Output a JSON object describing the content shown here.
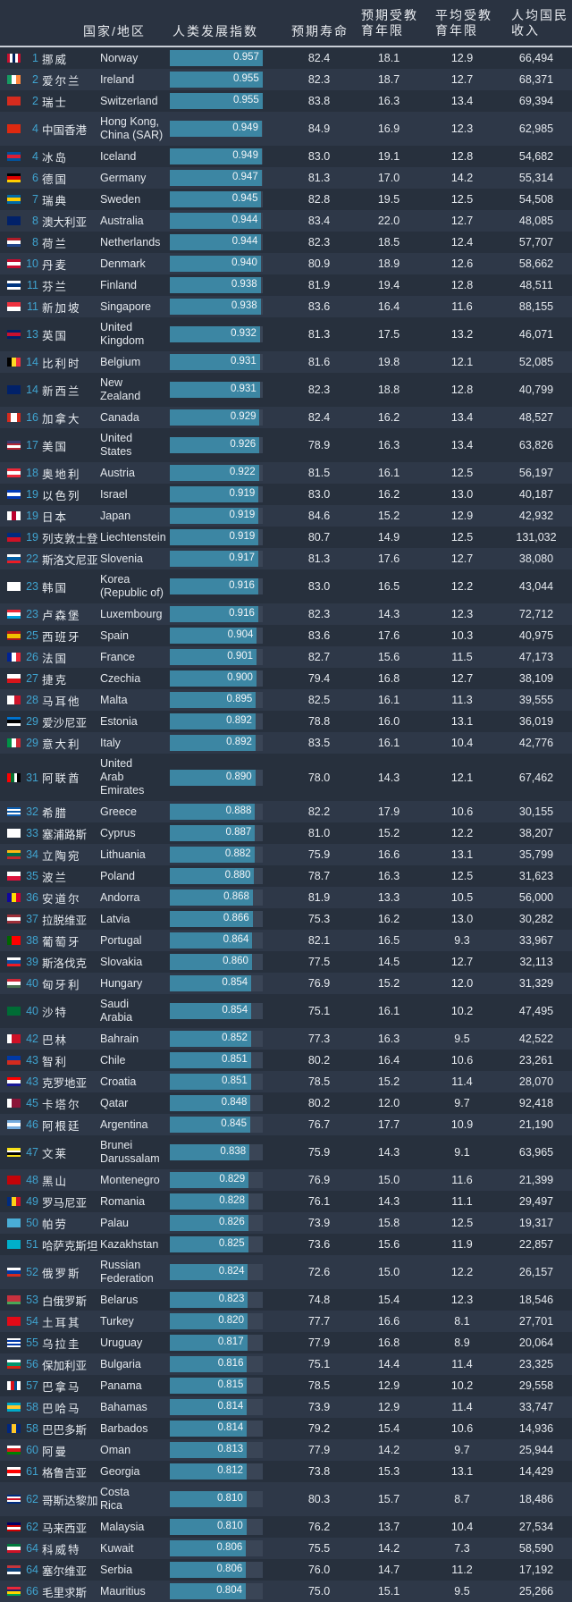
{
  "headers": {
    "country": "国家/地区",
    "hdi": "人类发展指数",
    "life": "预期寿命",
    "expected_edu": "预期受教育年限",
    "mean_edu": "平均受教育年限",
    "gni": "人均国民收入"
  },
  "colors": {
    "rank": "#3fa3cf",
    "bar": "#3c86a3",
    "bar_bg": "#3a4556"
  },
  "rows": [
    {
      "rank": "1",
      "cn": "挪威",
      "en": "Norway",
      "hdi": "0.957",
      "life": "82.4",
      "exp": "18.1",
      "mean": "12.9",
      "gni": "66,494",
      "flag": [
        "#c8102e",
        "#ffffff",
        "#00205b",
        "#ffffff",
        "#c8102e"
      ],
      "dir": "v"
    },
    {
      "rank": "2",
      "cn": "爱尔兰",
      "en": "Ireland",
      "hdi": "0.955",
      "life": "82.3",
      "exp": "18.7",
      "mean": "12.7",
      "gni": "68,371",
      "flag": [
        "#169b62",
        "#ffffff",
        "#ff883e"
      ],
      "dir": "v"
    },
    {
      "rank": "2",
      "cn": "瑞士",
      "en": "Switzerland",
      "hdi": "0.955",
      "life": "83.8",
      "exp": "16.3",
      "mean": "13.4",
      "gni": "69,394",
      "flag": [
        "#d52b1e"
      ],
      "dir": "v"
    },
    {
      "rank": "4",
      "cn": "中国香港",
      "en": "Hong Kong,\nChina (SAR)",
      "hdi": "0.949",
      "life": "84.9",
      "exp": "16.9",
      "mean": "12.3",
      "gni": "62,985",
      "flag": [
        "#de2910"
      ],
      "dir": "v"
    },
    {
      "rank": "4",
      "cn": "冰岛",
      "en": "Iceland",
      "hdi": "0.949",
      "life": "83.0",
      "exp": "19.1",
      "mean": "12.8",
      "gni": "54,682",
      "flag": [
        "#02529c",
        "#dc1e35",
        "#02529c"
      ],
      "dir": "h"
    },
    {
      "rank": "6",
      "cn": "德国",
      "en": "Germany",
      "hdi": "0.947",
      "life": "81.3",
      "exp": "17.0",
      "mean": "14.2",
      "gni": "55,314",
      "flag": [
        "#000000",
        "#dd0000",
        "#ffce00"
      ],
      "dir": "h"
    },
    {
      "rank": "7",
      "cn": "瑞典",
      "en": "Sweden",
      "hdi": "0.945",
      "life": "82.8",
      "exp": "19.5",
      "mean": "12.5",
      "gni": "54,508",
      "flag": [
        "#006aa7",
        "#fecc00",
        "#006aa7"
      ],
      "dir": "h"
    },
    {
      "rank": "8",
      "cn": "澳大利亚",
      "en": "Australia",
      "hdi": "0.944",
      "life": "83.4",
      "exp": "22.0",
      "mean": "12.7",
      "gni": "48,085",
      "flag": [
        "#012169"
      ],
      "dir": "h"
    },
    {
      "rank": "8",
      "cn": "荷兰",
      "en": "Netherlands",
      "hdi": "0.944",
      "life": "82.3",
      "exp": "18.5",
      "mean": "12.4",
      "gni": "57,707",
      "flag": [
        "#ae1c28",
        "#ffffff",
        "#21468b"
      ],
      "dir": "h"
    },
    {
      "rank": "10",
      "cn": "丹麦",
      "en": "Denmark",
      "hdi": "0.940",
      "life": "80.9",
      "exp": "18.9",
      "mean": "12.6",
      "gni": "58,662",
      "flag": [
        "#c60c30",
        "#ffffff",
        "#c60c30"
      ],
      "dir": "h"
    },
    {
      "rank": "11",
      "cn": "芬兰",
      "en": "Finland",
      "hdi": "0.938",
      "life": "81.9",
      "exp": "19.4",
      "mean": "12.8",
      "gni": "48,511",
      "flag": [
        "#ffffff",
        "#003580",
        "#ffffff"
      ],
      "dir": "h"
    },
    {
      "rank": "11",
      "cn": "新加坡",
      "en": "Singapore",
      "hdi": "0.938",
      "life": "83.6",
      "exp": "16.4",
      "mean": "11.6",
      "gni": "88,155",
      "flag": [
        "#ef3340",
        "#ffffff"
      ],
      "dir": "h"
    },
    {
      "rank": "13",
      "cn": "英国",
      "en": "United\nKingdom",
      "hdi": "0.932",
      "life": "81.3",
      "exp": "17.5",
      "mean": "13.2",
      "gni": "46,071",
      "flag": [
        "#012169",
        "#c8102e",
        "#012169"
      ],
      "dir": "h"
    },
    {
      "rank": "14",
      "cn": "比利时",
      "en": "Belgium",
      "hdi": "0.931",
      "life": "81.6",
      "exp": "19.8",
      "mean": "12.1",
      "gni": "52,085",
      "flag": [
        "#000000",
        "#fdda24",
        "#ef3340"
      ],
      "dir": "v"
    },
    {
      "rank": "14",
      "cn": "新西兰",
      "en": "New\nZealand",
      "hdi": "0.931",
      "life": "82.3",
      "exp": "18.8",
      "mean": "12.8",
      "gni": "40,799",
      "flag": [
        "#012169"
      ],
      "dir": "h"
    },
    {
      "rank": "16",
      "cn": "加拿大",
      "en": "Canada",
      "hdi": "0.929",
      "life": "82.4",
      "exp": "16.2",
      "mean": "13.4",
      "gni": "48,527",
      "flag": [
        "#d52b1e",
        "#ffffff",
        "#ffffff",
        "#d52b1e"
      ],
      "dir": "v"
    },
    {
      "rank": "17",
      "cn": "美国",
      "en": "United\nStates",
      "hdi": "0.926",
      "life": "78.9",
      "exp": "16.3",
      "mean": "13.4",
      "gni": "63,826",
      "flag": [
        "#3c3b6e",
        "#b22234",
        "#ffffff",
        "#b22234"
      ],
      "dir": "h"
    },
    {
      "rank": "18",
      "cn": "奥地利",
      "en": "Austria",
      "hdi": "0.922",
      "life": "81.5",
      "exp": "16.1",
      "mean": "12.5",
      "gni": "56,197",
      "flag": [
        "#ed2939",
        "#ffffff",
        "#ed2939"
      ],
      "dir": "h"
    },
    {
      "rank": "19",
      "cn": "以色列",
      "en": "Israel",
      "hdi": "0.919",
      "life": "83.0",
      "exp": "16.2",
      "mean": "13.0",
      "gni": "40,187",
      "flag": [
        "#0038b8",
        "#ffffff",
        "#0038b8"
      ],
      "dir": "h"
    },
    {
      "rank": "19",
      "cn": "日本",
      "en": "Japan",
      "hdi": "0.919",
      "life": "84.6",
      "exp": "15.2",
      "mean": "12.9",
      "gni": "42,932",
      "flag": [
        "#ffffff",
        "#bc002d",
        "#ffffff"
      ],
      "dir": "v"
    },
    {
      "rank": "19",
      "cn": "列支敦士登",
      "en": "Liechtenstein",
      "hdi": "0.919",
      "life": "80.7",
      "exp": "14.9",
      "mean": "12.5",
      "gni": "131,032",
      "flag": [
        "#002b7f",
        "#ce1126"
      ],
      "dir": "h"
    },
    {
      "rank": "22",
      "cn": "斯洛文尼亚",
      "en": "Slovenia",
      "hdi": "0.917",
      "life": "81.3",
      "exp": "17.6",
      "mean": "12.7",
      "gni": "38,080",
      "flag": [
        "#ffffff",
        "#005da4",
        "#ed1c24"
      ],
      "dir": "h"
    },
    {
      "rank": "23",
      "cn": "韩国",
      "en": "Korea\n(Republic of)",
      "hdi": "0.916",
      "life": "83.0",
      "exp": "16.5",
      "mean": "12.2",
      "gni": "43,044",
      "flag": [
        "#ffffff"
      ],
      "dir": "h"
    },
    {
      "rank": "23",
      "cn": "卢森堡",
      "en": "Luxembourg",
      "hdi": "0.916",
      "life": "82.3",
      "exp": "14.3",
      "mean": "12.3",
      "gni": "72,712",
      "flag": [
        "#ed2939",
        "#ffffff",
        "#00a1de"
      ],
      "dir": "h"
    },
    {
      "rank": "25",
      "cn": "西班牙",
      "en": "Spain",
      "hdi": "0.904",
      "life": "83.6",
      "exp": "17.6",
      "mean": "10.3",
      "gni": "40,975",
      "flag": [
        "#aa151b",
        "#f1bf00",
        "#f1bf00",
        "#aa151b"
      ],
      "dir": "h"
    },
    {
      "rank": "26",
      "cn": "法国",
      "en": "France",
      "hdi": "0.901",
      "life": "82.7",
      "exp": "15.6",
      "mean": "11.5",
      "gni": "47,173",
      "flag": [
        "#002395",
        "#ffffff",
        "#ed2939"
      ],
      "dir": "v"
    },
    {
      "rank": "27",
      "cn": "捷克",
      "en": "Czechia",
      "hdi": "0.900",
      "life": "79.4",
      "exp": "16.8",
      "mean": "12.7",
      "gni": "38,109",
      "flag": [
        "#ffffff",
        "#d7141a"
      ],
      "dir": "h"
    },
    {
      "rank": "28",
      "cn": "马耳他",
      "en": "Malta",
      "hdi": "0.895",
      "life": "82.5",
      "exp": "16.1",
      "mean": "11.3",
      "gni": "39,555",
      "flag": [
        "#ffffff",
        "#cf142b"
      ],
      "dir": "v"
    },
    {
      "rank": "29",
      "cn": "爱沙尼亚",
      "en": "Estonia",
      "hdi": "0.892",
      "life": "78.8",
      "exp": "16.0",
      "mean": "13.1",
      "gni": "36,019",
      "flag": [
        "#0072ce",
        "#000000",
        "#ffffff"
      ],
      "dir": "h"
    },
    {
      "rank": "29",
      "cn": "意大利",
      "en": "Italy",
      "hdi": "0.892",
      "life": "83.5",
      "exp": "16.1",
      "mean": "10.4",
      "gni": "42,776",
      "flag": [
        "#009246",
        "#ffffff",
        "#ce2b37"
      ],
      "dir": "v"
    },
    {
      "rank": "31",
      "cn": "阿联酋",
      "en": "United\nArab\nEmirates",
      "hdi": "0.890",
      "life": "78.0",
      "exp": "14.3",
      "mean": "12.1",
      "gni": "67,462",
      "flag": [
        "#ff0000",
        "#00732f",
        "#ffffff",
        "#000000"
      ],
      "dir": "v"
    },
    {
      "rank": "32",
      "cn": "希腊",
      "en": "Greece",
      "hdi": "0.888",
      "life": "82.2",
      "exp": "17.9",
      "mean": "10.6",
      "gni": "30,155",
      "flag": [
        "#0d5eaf",
        "#ffffff",
        "#0d5eaf",
        "#ffffff",
        "#0d5eaf"
      ],
      "dir": "h"
    },
    {
      "rank": "33",
      "cn": "塞浦路斯",
      "en": "Cyprus",
      "hdi": "0.887",
      "life": "81.0",
      "exp": "15.2",
      "mean": "12.2",
      "gni": "38,207",
      "flag": [
        "#ffffff"
      ],
      "dir": "h"
    },
    {
      "rank": "34",
      "cn": "立陶宛",
      "en": "Lithuania",
      "hdi": "0.882",
      "life": "75.9",
      "exp": "16.6",
      "mean": "13.1",
      "gni": "35,799",
      "flag": [
        "#fdb913",
        "#006a44",
        "#c1272d"
      ],
      "dir": "h"
    },
    {
      "rank": "35",
      "cn": "波兰",
      "en": "Poland",
      "hdi": "0.880",
      "life": "78.7",
      "exp": "16.3",
      "mean": "12.5",
      "gni": "31,623",
      "flag": [
        "#ffffff",
        "#dc143c"
      ],
      "dir": "h"
    },
    {
      "rank": "36",
      "cn": "安道尔",
      "en": "Andorra",
      "hdi": "0.868",
      "life": "81.9",
      "exp": "13.3",
      "mean": "10.5",
      "gni": "56,000",
      "flag": [
        "#10069f",
        "#fedd00",
        "#d50032"
      ],
      "dir": "v"
    },
    {
      "rank": "37",
      "cn": "拉脱维亚",
      "en": "Latvia",
      "hdi": "0.866",
      "life": "75.3",
      "exp": "16.2",
      "mean": "13.0",
      "gni": "30,282",
      "flag": [
        "#9e3039",
        "#ffffff",
        "#9e3039"
      ],
      "dir": "h"
    },
    {
      "rank": "38",
      "cn": "葡萄牙",
      "en": "Portugal",
      "hdi": "0.864",
      "life": "82.1",
      "exp": "16.5",
      "mean": "9.3",
      "gni": "33,967",
      "flag": [
        "#006600",
        "#ff0000",
        "#ff0000"
      ],
      "dir": "v"
    },
    {
      "rank": "39",
      "cn": "斯洛伐克",
      "en": "Slovakia",
      "hdi": "0.860",
      "life": "77.5",
      "exp": "14.5",
      "mean": "12.7",
      "gni": "32,113",
      "flag": [
        "#ffffff",
        "#0b4ea2",
        "#ee1c25"
      ],
      "dir": "h"
    },
    {
      "rank": "40",
      "cn": "匈牙利",
      "en": "Hungary",
      "hdi": "0.854",
      "life": "76.9",
      "exp": "15.2",
      "mean": "12.0",
      "gni": "31,329",
      "flag": [
        "#ce2939",
        "#ffffff",
        "#477050"
      ],
      "dir": "h"
    },
    {
      "rank": "40",
      "cn": "沙特",
      "en": "Saudi\nArabia",
      "hdi": "0.854",
      "life": "75.1",
      "exp": "16.1",
      "mean": "10.2",
      "gni": "47,495",
      "flag": [
        "#006c35"
      ],
      "dir": "h"
    },
    {
      "rank": "42",
      "cn": "巴林",
      "en": "Bahrain",
      "hdi": "0.852",
      "life": "77.3",
      "exp": "16.3",
      "mean": "9.5",
      "gni": "42,522",
      "flag": [
        "#ffffff",
        "#ce1126",
        "#ce1126"
      ],
      "dir": "v"
    },
    {
      "rank": "43",
      "cn": "智利",
      "en": "Chile",
      "hdi": "0.851",
      "life": "80.2",
      "exp": "16.4",
      "mean": "10.6",
      "gni": "23,261",
      "flag": [
        "#0039a6",
        "#d52b1e"
      ],
      "dir": "h"
    },
    {
      "rank": "43",
      "cn": "克罗地亚",
      "en": "Croatia",
      "hdi": "0.851",
      "life": "78.5",
      "exp": "15.2",
      "mean": "11.4",
      "gni": "28,070",
      "flag": [
        "#ff0000",
        "#ffffff",
        "#171796"
      ],
      "dir": "h"
    },
    {
      "rank": "45",
      "cn": "卡塔尔",
      "en": "Qatar",
      "hdi": "0.848",
      "life": "80.2",
      "exp": "12.0",
      "mean": "9.7",
      "gni": "92,418",
      "flag": [
        "#ffffff",
        "#8a1538",
        "#8a1538"
      ],
      "dir": "v"
    },
    {
      "rank": "46",
      "cn": "阿根廷",
      "en": "Argentina",
      "hdi": "0.845",
      "life": "76.7",
      "exp": "17.7",
      "mean": "10.9",
      "gni": "21,190",
      "flag": [
        "#74acdf",
        "#ffffff",
        "#74acdf"
      ],
      "dir": "h"
    },
    {
      "rank": "47",
      "cn": "文莱",
      "en": "Brunei\nDarussalam",
      "hdi": "0.838",
      "life": "75.9",
      "exp": "14.3",
      "mean": "9.1",
      "gni": "63,965",
      "flag": [
        "#f7e017",
        "#ffffff",
        "#000000",
        "#f7e017"
      ],
      "dir": "h"
    },
    {
      "rank": "48",
      "cn": "黑山",
      "en": "Montenegro",
      "hdi": "0.829",
      "life": "76.9",
      "exp": "15.0",
      "mean": "11.6",
      "gni": "21,399",
      "flag": [
        "#c40308"
      ],
      "dir": "h"
    },
    {
      "rank": "49",
      "cn": "罗马尼亚",
      "en": "Romania",
      "hdi": "0.828",
      "life": "76.1",
      "exp": "14.3",
      "mean": "11.1",
      "gni": "29,497",
      "flag": [
        "#002b7f",
        "#fcd116",
        "#ce1126"
      ],
      "dir": "v"
    },
    {
      "rank": "50",
      "cn": "帕劳",
      "en": "Palau",
      "hdi": "0.826",
      "life": "73.9",
      "exp": "15.8",
      "mean": "12.5",
      "gni": "19,317",
      "flag": [
        "#4aadd6"
      ],
      "dir": "h"
    },
    {
      "rank": "51",
      "cn": "哈萨克斯坦",
      "en": "Kazakhstan",
      "hdi": "0.825",
      "life": "73.6",
      "exp": "15.6",
      "mean": "11.9",
      "gni": "22,857",
      "flag": [
        "#00afca"
      ],
      "dir": "h"
    },
    {
      "rank": "52",
      "cn": "俄罗斯",
      "en": "Russian\nFederation",
      "hdi": "0.824",
      "life": "72.6",
      "exp": "15.0",
      "mean": "12.2",
      "gni": "26,157",
      "flag": [
        "#ffffff",
        "#0039a6",
        "#d52b1e"
      ],
      "dir": "h"
    },
    {
      "rank": "53",
      "cn": "白俄罗斯",
      "en": "Belarus",
      "hdi": "0.823",
      "life": "74.8",
      "exp": "15.4",
      "mean": "12.3",
      "gni": "18,546",
      "flag": [
        "#c8313e",
        "#c8313e",
        "#4aa657"
      ],
      "dir": "h"
    },
    {
      "rank": "54",
      "cn": "土耳其",
      "en": "Turkey",
      "hdi": "0.820",
      "life": "77.7",
      "exp": "16.6",
      "mean": "8.1",
      "gni": "27,701",
      "flag": [
        "#e30a17"
      ],
      "dir": "h"
    },
    {
      "rank": "55",
      "cn": "乌拉圭",
      "en": "Uruguay",
      "hdi": "0.817",
      "life": "77.9",
      "exp": "16.8",
      "mean": "8.9",
      "gni": "20,064",
      "flag": [
        "#ffffff",
        "#0038a8",
        "#ffffff",
        "#0038a8",
        "#ffffff"
      ],
      "dir": "h"
    },
    {
      "rank": "56",
      "cn": "保加利亚",
      "en": "Bulgaria",
      "hdi": "0.816",
      "life": "75.1",
      "exp": "14.4",
      "mean": "11.4",
      "gni": "23,325",
      "flag": [
        "#ffffff",
        "#00966e",
        "#d62612"
      ],
      "dir": "h"
    },
    {
      "rank": "57",
      "cn": "巴拿马",
      "en": "Panama",
      "hdi": "0.815",
      "life": "78.5",
      "exp": "12.9",
      "mean": "10.2",
      "gni": "29,558",
      "flag": [
        "#ffffff",
        "#da121a",
        "#005293",
        "#ffffff"
      ],
      "dir": "v"
    },
    {
      "rank": "58",
      "cn": "巴哈马",
      "en": "Bahamas",
      "hdi": "0.814",
      "life": "73.9",
      "exp": "12.9",
      "mean": "11.4",
      "gni": "33,747",
      "flag": [
        "#00abc9",
        "#ffc72c",
        "#00abc9"
      ],
      "dir": "h"
    },
    {
      "rank": "58",
      "cn": "巴巴多斯",
      "en": "Barbados",
      "hdi": "0.814",
      "life": "79.2",
      "exp": "15.4",
      "mean": "10.6",
      "gni": "14,936",
      "flag": [
        "#00267f",
        "#ffc726",
        "#00267f"
      ],
      "dir": "v"
    },
    {
      "rank": "60",
      "cn": "阿曼",
      "en": "Oman",
      "hdi": "0.813",
      "life": "77.9",
      "exp": "14.2",
      "mean": "9.7",
      "gni": "25,944",
      "flag": [
        "#ffffff",
        "#db161b",
        "#008000"
      ],
      "dir": "h"
    },
    {
      "rank": "61",
      "cn": "格鲁吉亚",
      "en": "Georgia",
      "hdi": "0.812",
      "life": "73.8",
      "exp": "15.3",
      "mean": "13.1",
      "gni": "14,429",
      "flag": [
        "#ffffff",
        "#ff0000",
        "#ffffff"
      ],
      "dir": "h"
    },
    {
      "rank": "62",
      "cn": "哥斯达黎加",
      "en": "Costa\nRica",
      "hdi": "0.810",
      "life": "80.3",
      "exp": "15.7",
      "mean": "8.7",
      "gni": "18,486",
      "flag": [
        "#002b7f",
        "#ffffff",
        "#ce1126",
        "#ffffff",
        "#002b7f"
      ],
      "dir": "h"
    },
    {
      "rank": "62",
      "cn": "马来西亚",
      "en": "Malaysia",
      "hdi": "0.810",
      "life": "76.2",
      "exp": "13.7",
      "mean": "10.4",
      "gni": "27,534",
      "flag": [
        "#010066",
        "#cc0001",
        "#ffffff",
        "#cc0001"
      ],
      "dir": "h"
    },
    {
      "rank": "64",
      "cn": "科威特",
      "en": "Kuwait",
      "hdi": "0.806",
      "life": "75.5",
      "exp": "14.2",
      "mean": "7.3",
      "gni": "58,590",
      "flag": [
        "#007a3d",
        "#ffffff",
        "#ce1126"
      ],
      "dir": "h"
    },
    {
      "rank": "64",
      "cn": "塞尔维亚",
      "en": "Serbia",
      "hdi": "0.806",
      "life": "76.0",
      "exp": "14.7",
      "mean": "11.2",
      "gni": "17,192",
      "flag": [
        "#c6363c",
        "#0c4076",
        "#ffffff"
      ],
      "dir": "h"
    },
    {
      "rank": "66",
      "cn": "毛里求斯",
      "en": "Mauritius",
      "hdi": "0.804",
      "life": "75.0",
      "exp": "15.1",
      "mean": "9.5",
      "gni": "25,266",
      "flag": [
        "#ea2839",
        "#1a206d",
        "#ffd500",
        "#00a551"
      ],
      "dir": "h"
    }
  ]
}
